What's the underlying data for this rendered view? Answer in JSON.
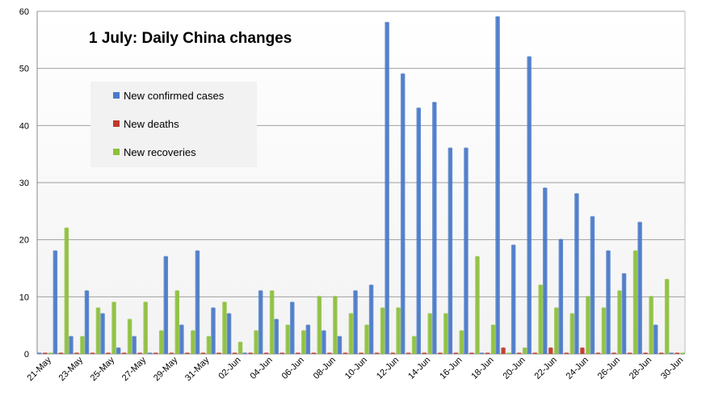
{
  "chart_data": {
    "type": "bar",
    "title": "1 July: Daily China changes",
    "xlabel": "",
    "ylabel": "",
    "ylim": [
      0,
      60
    ],
    "yticks": [
      0,
      10,
      20,
      30,
      40,
      50,
      60
    ],
    "grid": true,
    "legend_position": "top-left",
    "categories": [
      "21-May",
      "22-May",
      "23-May",
      "24-May",
      "25-May",
      "26-May",
      "27-May",
      "28-May",
      "29-May",
      "30-May",
      "31-May",
      "01-Jun",
      "02-Jun",
      "03-Jun",
      "04-Jun",
      "05-Jun",
      "06-Jun",
      "07-Jun",
      "08-Jun",
      "09-Jun",
      "10-Jun",
      "11-Jun",
      "12-Jun",
      "13-Jun",
      "14-Jun",
      "15-Jun",
      "16-Jun",
      "17-Jun",
      "18-Jun",
      "19-Jun",
      "20-Jun",
      "21-Jun",
      "22-Jun",
      "23-Jun",
      "24-Jun",
      "25-Jun",
      "26-Jun",
      "27-Jun",
      "28-Jun",
      "29-Jun",
      "30-Jun"
    ],
    "tick_labels": [
      "21-May",
      "23-May",
      "25-May",
      "27-May",
      "29-May",
      "31-May",
      "02-Jun",
      "04-Jun",
      "06-Jun",
      "08-Jun",
      "10-Jun",
      "12-Jun",
      "14-Jun",
      "16-Jun",
      "18-Jun",
      "20-Jun",
      "22-Jun",
      "24-Jun",
      "26-Jun",
      "28-Jun",
      "30-Jun"
    ],
    "series": [
      {
        "name": "New confirmed cases",
        "color": "#4a7ac8",
        "values": [
          0,
          18,
          3,
          11,
          7,
          1,
          3,
          0,
          17,
          5,
          18,
          8,
          7,
          0,
          11,
          6,
          9,
          5,
          4,
          3,
          11,
          12,
          58,
          49,
          43,
          44,
          36,
          36,
          0,
          59,
          19,
          52,
          29,
          20,
          28,
          24,
          18,
          14,
          23,
          5,
          0
        ]
      },
      {
        "name": "New deaths",
        "color": "#c0392b",
        "values": [
          0,
          0,
          0,
          0,
          0,
          0,
          0,
          0,
          0,
          0,
          0,
          0,
          0,
          0,
          0,
          0,
          0,
          0,
          0,
          0,
          0,
          0,
          0,
          0,
          0,
          0,
          0,
          0,
          0,
          1,
          0,
          0,
          1,
          0,
          1,
          0,
          0,
          0,
          0,
          0,
          0
        ]
      },
      {
        "name": "New recoveries",
        "color": "#8dc03c",
        "values": [
          0,
          22,
          3,
          8,
          9,
          6,
          9,
          4,
          11,
          4,
          3,
          9,
          2,
          4,
          11,
          5,
          4,
          10,
          10,
          7,
          5,
          8,
          8,
          3,
          7,
          7,
          4,
          17,
          5,
          0,
          1,
          12,
          8,
          7,
          10,
          8,
          11,
          18,
          10,
          13,
          0
        ]
      }
    ]
  }
}
